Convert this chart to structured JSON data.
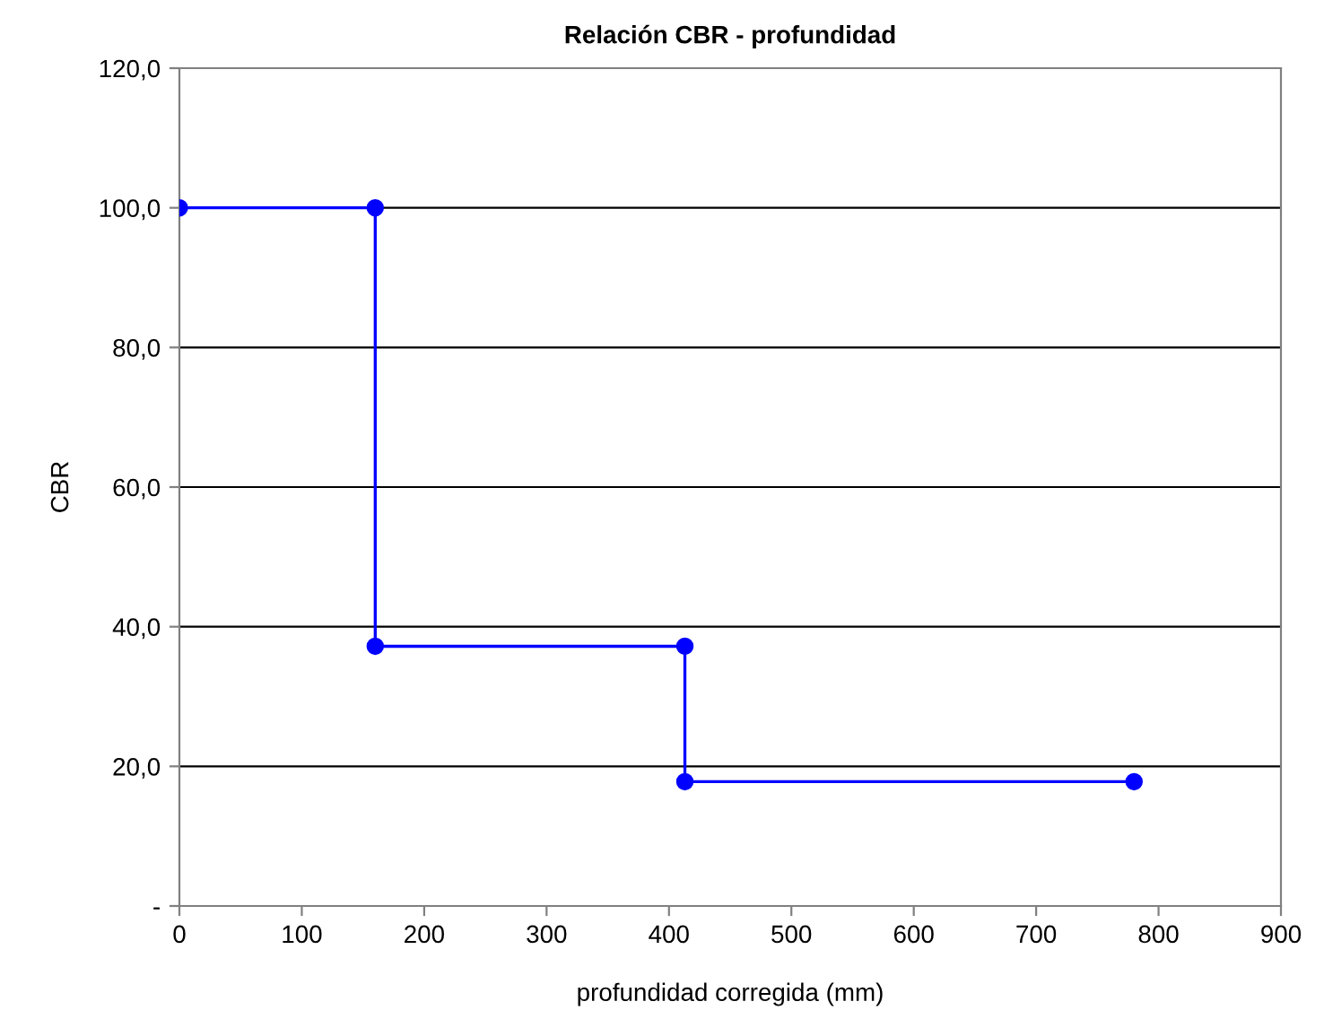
{
  "chart_data": {
    "type": "line",
    "title": "Relación CBR - profundidad",
    "xlabel": "profundidad corregida (mm)",
    "ylabel": "CBR",
    "series": [
      {
        "color": "#0000ff",
        "x": [
          0,
          160,
          160,
          413,
          413,
          780
        ],
        "values": [
          100,
          100,
          37.2,
          37.2,
          17.8,
          17.8
        ]
      }
    ],
    "xlim": [
      0,
      900
    ],
    "xticks": [
      0,
      100,
      200,
      300,
      400,
      500,
      600,
      700,
      800,
      900
    ],
    "ylim": [
      0,
      120
    ],
    "yticks": [
      {
        "value": 0,
        "label": "-"
      },
      {
        "value": 20,
        "label": "20,0"
      },
      {
        "value": 40,
        "label": "40,0"
      },
      {
        "value": 60,
        "label": "60,0"
      },
      {
        "value": 80,
        "label": "80,0"
      },
      {
        "value": 100,
        "label": "100,0"
      },
      {
        "value": 120,
        "label": "120,0"
      }
    ],
    "grid": "y",
    "marker": "circle",
    "line_style": "solid",
    "legend": false
  }
}
